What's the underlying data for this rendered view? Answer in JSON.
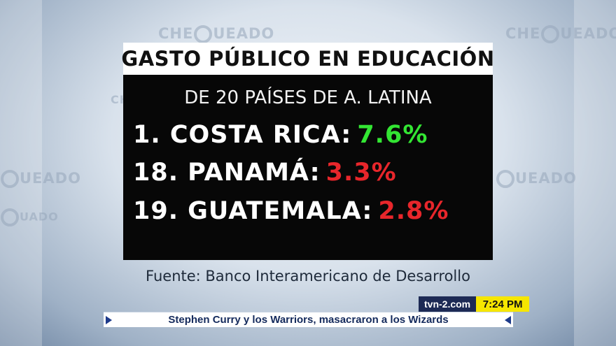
{
  "graphic": {
    "title": "GASTO PÚBLICO EN EDUCACIÓN",
    "subtitle": "DE 20 PAÍSES DE A. LATINA",
    "rankings": [
      {
        "label": "1. COSTA RICA:",
        "value": "7.6%",
        "color": "#33e633"
      },
      {
        "label": "18. PANAMÁ:",
        "value": "3.3%",
        "color": "#e8262b"
      },
      {
        "label": "19. GUATEMALA:",
        "value": "2.8%",
        "color": "#e8262b"
      }
    ],
    "source": "Fuente: Banco Interamericano de Desarrollo"
  },
  "background_logo": {
    "text_left": "CHE",
    "text_right": "UEADO",
    "text_alt": "UADO"
  },
  "lower_third": {
    "channel": "tvn-2.com",
    "time": "7:24 PM",
    "ticker": "Stephen Curry y los Warriors, masacraron a los Wizards"
  },
  "colors": {
    "panel_bg": "#070707",
    "title_bg": "#ffffff",
    "clock_bg": "#f6e600",
    "channel_bg": "#1d2a55"
  }
}
